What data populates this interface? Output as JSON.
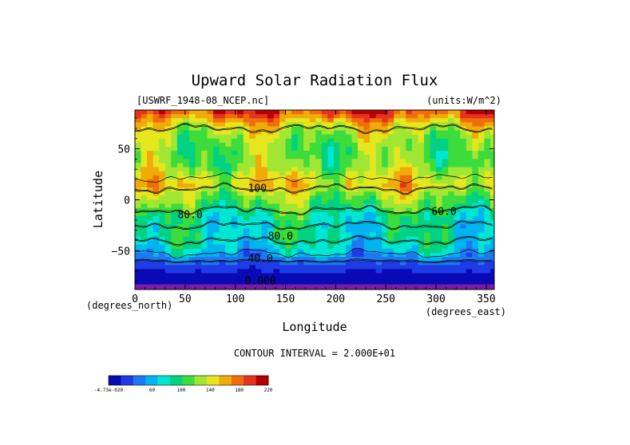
{
  "chart_data": {
    "type": "heatmap",
    "title": "Upward Solar Radiation Flux",
    "file_label": "[USWRF_1948-08_NCEP.nc]",
    "units_label": "(units:W/m^2)",
    "xlabel": "Longitude",
    "ylabel": "Latitude",
    "x_units_label": "(degrees_east)",
    "y_units_label": "(degrees_north)",
    "xlim": [
      0,
      358
    ],
    "ylim": [
      -88,
      88
    ],
    "xticks": [
      0,
      50,
      100,
      150,
      200,
      250,
      300,
      350
    ],
    "xtick_labels": [
      "0",
      "50",
      "100",
      "150",
      "200",
      "250",
      "300",
      "350"
    ],
    "yticks": [
      -50,
      0,
      50
    ],
    "ytick_labels": [
      "−50",
      "0",
      "50"
    ],
    "contour_interval_text": "CONTOUR INTERVAL = 2.000E+01",
    "contour_labels": [
      {
        "text": "100",
        "lon": 122,
        "lat": 8
      },
      {
        "text": "80.0",
        "lon": 55,
        "lat": -18
      },
      {
        "text": "80.0",
        "lon": 145,
        "lat": -39
      },
      {
        "text": "60.0",
        "lon": 308,
        "lat": -15
      },
      {
        "text": "40.0",
        "lon": 125,
        "lat": -61
      },
      {
        "text": "0.000",
        "lon": 125,
        "lat": -83
      }
    ],
    "latitude_band_means": [
      {
        "lat": 85,
        "value": 190
      },
      {
        "lat": 75,
        "value": 150
      },
      {
        "lat": 65,
        "value": 130
      },
      {
        "lat": 55,
        "value": 120
      },
      {
        "lat": 45,
        "value": 115
      },
      {
        "lat": 35,
        "value": 120
      },
      {
        "lat": 25,
        "value": 135
      },
      {
        "lat": 15,
        "value": 150
      },
      {
        "lat": 5,
        "value": 125
      },
      {
        "lat": -5,
        "value": 110
      },
      {
        "lat": -15,
        "value": 90
      },
      {
        "lat": -25,
        "value": 80
      },
      {
        "lat": -35,
        "value": 85
      },
      {
        "lat": -45,
        "value": 75
      },
      {
        "lat": -55,
        "value": 55
      },
      {
        "lat": -65,
        "value": 25
      },
      {
        "lat": -75,
        "value": 10
      },
      {
        "lat": -85,
        "value": 0
      }
    ],
    "colorbar": {
      "colors": [
        "#0a0ab4",
        "#1e3ce6",
        "#1e78f0",
        "#00b4f0",
        "#00e6d2",
        "#00d282",
        "#3cdc3c",
        "#a0e632",
        "#e6e61e",
        "#f0aa0a",
        "#f06e0a",
        "#e6321e",
        "#b40000"
      ],
      "tick_labels": [
        "-4.73e-020",
        "60",
        "100",
        "140",
        "180",
        "220"
      ],
      "tick_values": [
        0,
        60,
        100,
        140,
        180,
        220
      ],
      "vmin": 0,
      "vmax": 220
    }
  }
}
